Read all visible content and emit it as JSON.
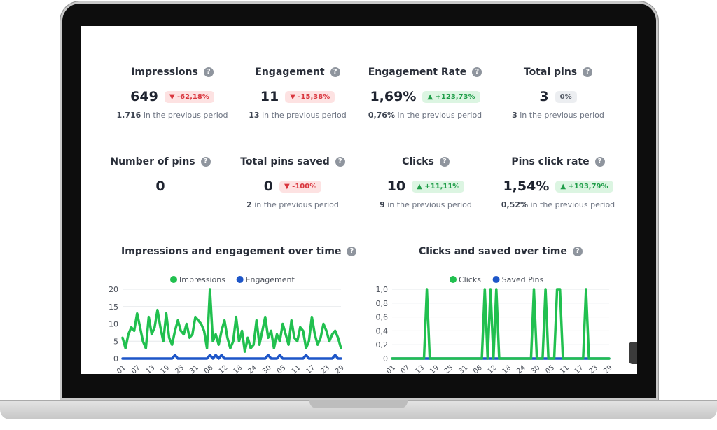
{
  "metrics": [
    {
      "title": "Impressions",
      "value": "649",
      "badge": "▼ -62,18%",
      "prev_value": "1.716",
      "prev_text": " in the previous period"
    },
    {
      "title": "Engagement",
      "value": "11",
      "badge": "▼ -15,38%",
      "prev_value": "13",
      "prev_text": " in the previous period"
    },
    {
      "title": "Engagement Rate",
      "value": "1,69%",
      "badge": "▲ +123,73%",
      "prev_value": "0,76%",
      "prev_text": " in the previous period"
    },
    {
      "title": "Total pins",
      "value": "3",
      "badge": "0%",
      "prev_value": "3",
      "prev_text": " in the previous period"
    },
    {
      "title": "Number of pins",
      "value": "0"
    },
    {
      "title": "Total pins saved",
      "value": "0",
      "badge": "▼ -100%",
      "prev_value": "2",
      "prev_text": " in the previous period"
    },
    {
      "title": "Clicks",
      "value": "10",
      "badge": "▲ +11,11%",
      "prev_value": "9",
      "prev_text": " in the previous period"
    },
    {
      "title": "Pins click rate",
      "value": "1,54%",
      "badge": "▲ +193,79%",
      "prev_value": "0,52%",
      "prev_text": " in the previous period"
    }
  ],
  "help_glyph": "?",
  "colors": {
    "green": "#21c04f",
    "blue": "#1e56c8",
    "down": "#d9363e",
    "up": "#1f9d48"
  },
  "chart_data": [
    {
      "type": "line",
      "title": "Impressions and engagement over time",
      "legend_position": "top",
      "ylim": [
        0,
        20
      ],
      "yticks": [
        "20",
        "15",
        "10",
        "5",
        "0"
      ],
      "x_ticks": [
        "01",
        "07",
        "13",
        "19",
        "25",
        "31",
        "06",
        "12",
        "18",
        "24",
        "30",
        "05",
        "11",
        "17",
        "23",
        "29"
      ],
      "series": [
        {
          "name": "Impressions",
          "color": "#21c04f",
          "values": [
            6,
            3,
            7,
            9,
            8,
            13,
            9,
            5,
            3,
            12,
            7,
            9,
            14,
            9,
            5,
            13,
            6,
            4,
            8,
            11,
            8,
            7,
            10,
            6,
            7,
            12,
            11,
            10,
            8,
            3,
            20,
            5,
            7,
            4,
            8,
            11,
            6,
            3,
            5,
            12,
            5,
            8,
            2,
            6,
            3,
            4,
            11,
            4,
            8,
            12,
            6,
            8,
            3,
            7,
            5,
            10,
            7,
            4,
            11,
            6,
            5,
            9,
            8,
            3,
            5,
            12,
            7,
            4,
            6,
            10,
            8,
            5,
            7,
            8,
            6,
            3
          ]
        },
        {
          "name": "Engagement",
          "color": "#1e56c8",
          "values": [
            0,
            0,
            0,
            0,
            0,
            0,
            0,
            0,
            0,
            0,
            0,
            0,
            0,
            0,
            0,
            0,
            0,
            0,
            1,
            0,
            0,
            0,
            0,
            0,
            0,
            0,
            0,
            0,
            0,
            0,
            1,
            0,
            1,
            0,
            1,
            0,
            0,
            0,
            0,
            0,
            0,
            0,
            0,
            0,
            0,
            0,
            0,
            0,
            0,
            0,
            1,
            0,
            0,
            0,
            1,
            0,
            0,
            0,
            0,
            0,
            0,
            0,
            0,
            1,
            0,
            0,
            0,
            0,
            0,
            0,
            0,
            0,
            0,
            1,
            0,
            0
          ]
        }
      ]
    },
    {
      "type": "line",
      "title": "Clicks and saved over time",
      "legend_position": "top",
      "ylim": [
        0,
        1
      ],
      "yticks": [
        "1,0",
        "0,8",
        "0,6",
        "0,4",
        "0,2",
        "0"
      ],
      "x_ticks": [
        "01",
        "07",
        "13",
        "19",
        "25",
        "31",
        "06",
        "12",
        "18",
        "24",
        "30",
        "05",
        "11",
        "17",
        "23",
        "29"
      ],
      "series": [
        {
          "name": "Clicks",
          "color": "#21c04f",
          "values": [
            0,
            0,
            0,
            0,
            0,
            0,
            0,
            0,
            0,
            0,
            0,
            0,
            1,
            0,
            0,
            0,
            0,
            0,
            0,
            0,
            0,
            0,
            0,
            0,
            0,
            0,
            0,
            0,
            0,
            0,
            0,
            0,
            1,
            0,
            1,
            0,
            1,
            0,
            0,
            0,
            0,
            0,
            0,
            0,
            0,
            0,
            0,
            0,
            0,
            1,
            0,
            0,
            0,
            1,
            0,
            0,
            0,
            1,
            1,
            0,
            0,
            0,
            0,
            0,
            0,
            0,
            0,
            1,
            0,
            0,
            0,
            0,
            0,
            0,
            0,
            0
          ]
        },
        {
          "name": "Saved Pins",
          "color": "#1e56c8",
          "values": [
            0,
            0,
            0,
            0,
            0,
            0,
            0,
            0,
            0,
            0,
            0,
            0,
            0,
            0,
            0,
            0,
            0,
            0,
            0,
            0,
            0,
            0,
            0,
            0,
            0,
            0,
            0,
            0,
            0,
            0,
            0,
            0,
            0,
            0,
            0,
            0,
            0,
            0,
            0,
            0,
            0,
            0,
            0,
            0,
            0,
            0,
            0,
            0,
            0,
            0,
            0,
            0,
            0,
            0,
            0,
            0,
            0,
            0,
            0,
            0,
            0,
            0,
            0,
            0,
            0,
            0,
            0,
            0,
            0,
            0,
            0,
            0,
            0,
            0,
            0,
            0
          ]
        }
      ]
    }
  ]
}
